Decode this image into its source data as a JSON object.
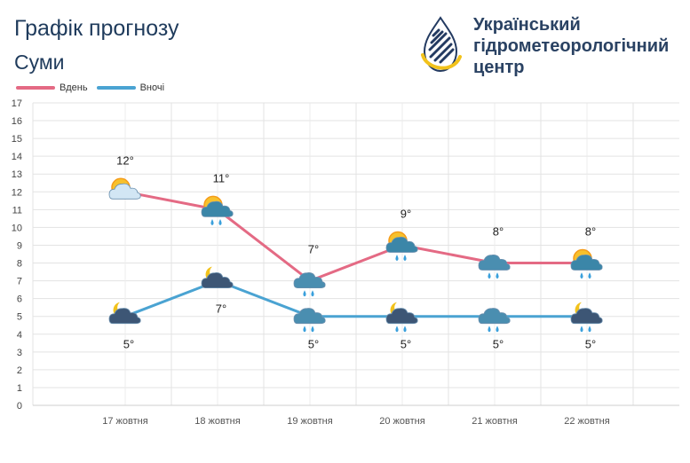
{
  "header": {
    "title": "Графік прогнозу",
    "city": "Суми"
  },
  "org": {
    "line1": "Український",
    "line2": "гідрометеорологічний",
    "line3": "центр"
  },
  "colors": {
    "day": "#e46a84",
    "night": "#4aa3d2",
    "title": "#1f3b5c",
    "logo_blue": "#233a61",
    "logo_yellow": "#f2c21b"
  },
  "legend": {
    "day_label": "Вдень",
    "night_label": "Вночі"
  },
  "chart_data": {
    "type": "line",
    "categories": [
      "17 жовтня",
      "18 жовтня",
      "19 жовтня",
      "20 жовтня",
      "21 жовтня",
      "22 жовтня"
    ],
    "series": [
      {
        "name": "Вдень",
        "values": [
          12,
          11,
          7,
          9,
          8,
          8
        ],
        "labels": [
          "12°",
          "11°",
          "7°",
          "9°",
          "8°",
          "8°"
        ],
        "icons": [
          "sun-cloud-icon",
          "sun-cloud-rain-icon",
          "cloud-rain-icon",
          "sun-cloud-rain-icon",
          "cloud-rain-icon",
          "sun-cloud-rain-icon"
        ]
      },
      {
        "name": "Вночі",
        "values": [
          5,
          7,
          5,
          5,
          5,
          5
        ],
        "labels": [
          "5°",
          "7°",
          "5°",
          "5°",
          "5°",
          "5°"
        ],
        "icons": [
          "moon-cloud-icon",
          "moon-cloud-icon",
          "cloud-rain-icon",
          "moon-cloud-rain-icon",
          "cloud-rain-icon",
          "moon-cloud-rain-icon"
        ]
      }
    ],
    "ylim": [
      0,
      17
    ],
    "yticks": [
      "0",
      "1",
      "2",
      "3",
      "4",
      "5",
      "6",
      "7",
      "8",
      "9",
      "10",
      "11",
      "12",
      "13",
      "14",
      "15",
      "16",
      "17"
    ],
    "grid": true,
    "legend_position": "top-left"
  }
}
